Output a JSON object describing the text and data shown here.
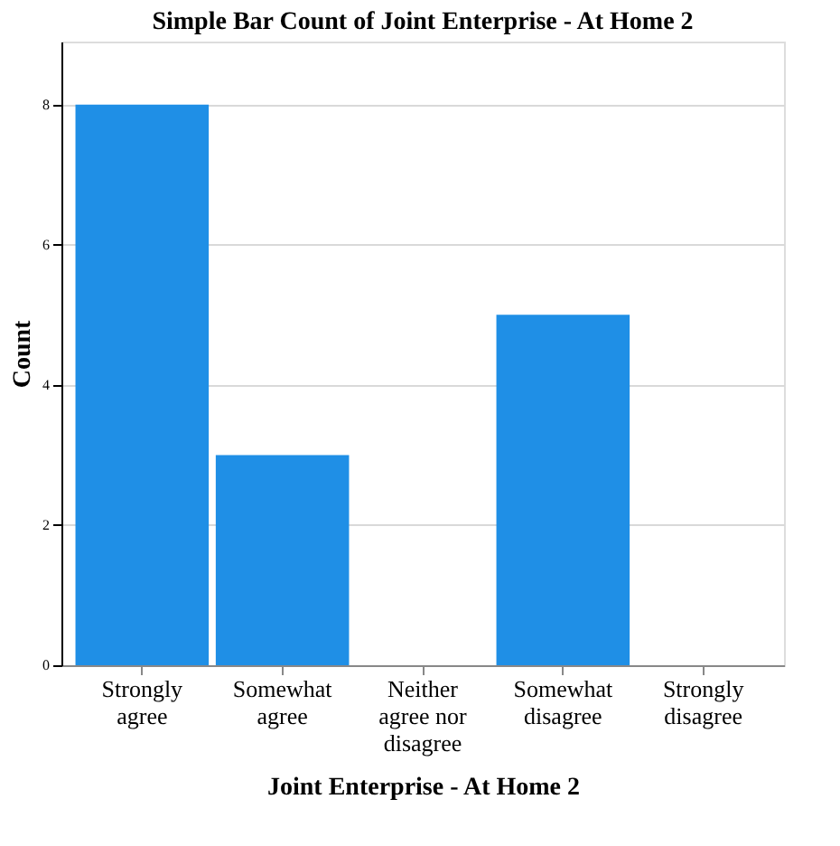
{
  "chart_data": {
    "type": "bar",
    "title": "Simple Bar Count of Joint Enterprise - At Home 2",
    "xlabel": "Joint Enterprise - At Home 2",
    "ylabel": "Count",
    "categories": [
      "Strongly\nagree",
      "Somewhat\nagree",
      "Neither\nagree nor\ndisagree",
      "Somewhat\ndisagree",
      "Strongly\ndisagree"
    ],
    "values": [
      8,
      3,
      0,
      5,
      0
    ],
    "color": "#1f8fe6",
    "ylim": [
      0,
      8.9
    ],
    "yticks": [
      0,
      2,
      4,
      6,
      8
    ],
    "grid": "y"
  }
}
